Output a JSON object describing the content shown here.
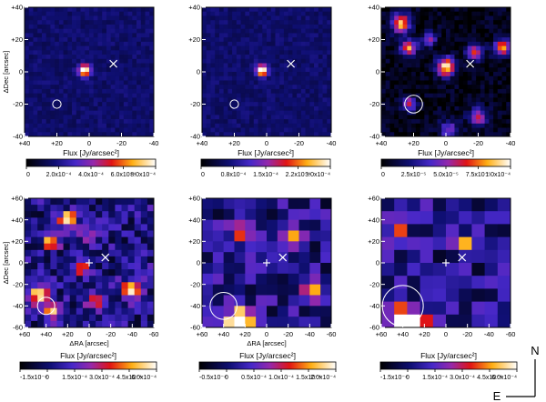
{
  "figure": {
    "compass": {
      "north": "N",
      "east": "E"
    }
  },
  "chart_data": [
    {
      "type": "heatmap",
      "panel": "top-left",
      "ylabel": "ΔDec [arcsec]",
      "xlabel": "",
      "xlim": [
        40,
        -40
      ],
      "ylim": [
        -40,
        40
      ],
      "xticks": [
        "+40",
        "+20",
        "0",
        "-20",
        "-40"
      ],
      "yticks": [
        "+40",
        "+20",
        "0",
        "-20",
        "-40"
      ],
      "grid_size": 30,
      "sources": [
        {
          "x": 3,
          "y": 1,
          "peak": 1.0,
          "sigma": 2.4
        }
      ],
      "circle": {
        "x": 20,
        "y": -20,
        "r": 2.6
      },
      "x_marker": {
        "x": -15,
        "y": 5
      },
      "plus_marker": null,
      "colorbar": {
        "label": "Flux [Jy/arcsec²]",
        "ticks": [
          "0",
          "2.0x10⁻⁴",
          "4.0x10⁻⁴",
          "6.0x10⁻⁴",
          "8.0x10⁻⁴"
        ],
        "range": [
          0,
          0.0008
        ]
      }
    },
    {
      "type": "heatmap",
      "panel": "top-middle",
      "ylabel": "",
      "xlabel": "",
      "xlim": [
        40,
        -40
      ],
      "ylim": [
        -40,
        40
      ],
      "xticks": [
        "+40",
        "+20",
        "0",
        "-20",
        "-40"
      ],
      "yticks": [
        "+40",
        "+20",
        "0",
        "-20",
        "-40"
      ],
      "grid_size": 30,
      "sources": [
        {
          "x": 3,
          "y": 1,
          "peak": 0.95,
          "sigma": 2.4
        }
      ],
      "circle": {
        "x": 20,
        "y": -20,
        "r": 2.6
      },
      "x_marker": {
        "x": -15,
        "y": 5
      },
      "plus_marker": null,
      "colorbar": {
        "label": "Flux [Jy/arcsec²]",
        "ticks": [
          "0",
          "0.8x10⁻⁴",
          "1.5x10⁻⁴",
          "2.2x10⁻⁴",
          "3.0x10⁻⁴"
        ],
        "range": [
          0,
          0.0003
        ]
      }
    },
    {
      "type": "heatmap",
      "panel": "top-right",
      "ylabel": "",
      "xlabel": "",
      "xlim": [
        40,
        -40
      ],
      "ylim": [
        -40,
        40
      ],
      "xticks": [
        "+40",
        "+20",
        "0",
        "-20",
        "-40"
      ],
      "yticks": [
        "+40",
        "+20",
        "0",
        "-20",
        "-40"
      ],
      "grid_size": 30,
      "sources": [
        {
          "x": 28,
          "y": 30,
          "peak": 0.85,
          "sigma": 4.0
        },
        {
          "x": 23,
          "y": 15,
          "peak": 0.75,
          "sigma": 3.5
        },
        {
          "x": 0,
          "y": 3,
          "peak": 0.9,
          "sigma": 4.0
        },
        {
          "x": -35,
          "y": 15,
          "peak": 0.8,
          "sigma": 3.5
        },
        {
          "x": -18,
          "y": 12,
          "peak": 0.6,
          "sigma": 3.5
        },
        {
          "x": 23,
          "y": -20,
          "peak": 0.6,
          "sigma": 3.0
        },
        {
          "x": -20,
          "y": -28,
          "peak": 0.55,
          "sigma": 4.0
        },
        {
          "x": -2,
          "y": -36,
          "peak": 0.45,
          "sigma": 4.0
        },
        {
          "x": 10,
          "y": 20,
          "peak": 0.45,
          "sigma": 3.0
        }
      ],
      "circle": {
        "x": 20,
        "y": -20,
        "r": 5.5
      },
      "x_marker": {
        "x": -15,
        "y": 5
      },
      "plus_marker": null,
      "colorbar": {
        "label": "Flux [Jy/arcsec²]",
        "ticks": [
          "0",
          "2.5x10⁻⁵",
          "5.0x10⁻⁵",
          "7.5x10⁻⁵",
          "1.0x10⁻⁴"
        ],
        "range": [
          0,
          0.0001
        ]
      }
    },
    {
      "type": "heatmap",
      "panel": "bottom-left",
      "ylabel": "ΔDec [arcsec]",
      "xlabel": "ΔRA [arcsec]",
      "xlim": [
        60,
        -60
      ],
      "ylim": [
        -60,
        60
      ],
      "xticks": [
        "+60",
        "+40",
        "+20",
        "0",
        "-20",
        "-40",
        "-60"
      ],
      "yticks": [
        "+60",
        "+40",
        "+20",
        "0",
        "-20",
        "-40",
        "-60"
      ],
      "grid_size": 20,
      "sources": [
        {
          "x": 20,
          "y": 40,
          "peak": 0.85,
          "sigma": 5.0
        },
        {
          "x": 35,
          "y": 20,
          "peak": 0.6,
          "sigma": 5.0
        },
        {
          "x": 45,
          "y": -30,
          "peak": 0.9,
          "sigma": 6.0
        },
        {
          "x": 35,
          "y": -45,
          "peak": 0.7,
          "sigma": 5.0
        },
        {
          "x": -40,
          "y": -25,
          "peak": 0.7,
          "sigma": 6.0
        },
        {
          "x": 5,
          "y": -5,
          "peak": 0.5,
          "sigma": 5.0
        },
        {
          "x": -5,
          "y": -35,
          "peak": 0.45,
          "sigma": 5.0
        },
        {
          "x": 0,
          "y": 25,
          "peak": 0.4,
          "sigma": 5.0
        }
      ],
      "circle": {
        "x": 40,
        "y": -40,
        "r": 8.0
      },
      "x_marker": {
        "x": -15,
        "y": 5
      },
      "plus_marker": {
        "x": 0,
        "y": 0
      },
      "colorbar": {
        "label": "Flux [Jy/arcsec²]",
        "ticks": [
          "-1.5x10⁻⁴",
          "0",
          "1.5x10⁻⁴",
          "3.0x10⁻⁴",
          "4.5x10⁻⁴",
          "6.0x10⁻⁴"
        ],
        "range": [
          -0.00015,
          0.0006
        ]
      }
    },
    {
      "type": "heatmap",
      "panel": "bottom-middle",
      "ylabel": "",
      "xlabel": "ΔRA [arcsec]",
      "xlim": [
        60,
        -60
      ],
      "ylim": [
        -60,
        60
      ],
      "xticks": [
        "+60",
        "+40",
        "+20",
        "0",
        "-20",
        "-40",
        "-60"
      ],
      "yticks": [
        "+60",
        "+40",
        "+20",
        "0",
        "-20",
        "-40",
        "-60"
      ],
      "grid_size": 12,
      "sources": [
        {
          "x": 25,
          "y": -55,
          "peak": 1.0,
          "sigma": 9.0
        },
        {
          "x": 25,
          "y": 30,
          "peak": 0.55,
          "sigma": 7.0
        },
        {
          "x": -25,
          "y": 20,
          "peak": 0.5,
          "sigma": 7.0
        },
        {
          "x": -45,
          "y": -25,
          "peak": 0.45,
          "sigma": 7.0
        }
      ],
      "circle": {
        "x": 40,
        "y": -40,
        "r": 12.5
      },
      "x_marker": {
        "x": -15,
        "y": 5
      },
      "plus_marker": {
        "x": 0,
        "y": 0
      },
      "colorbar": {
        "label": "Flux [Jy/arcsec²]",
        "ticks": [
          "-0.5x10⁻⁴",
          "0",
          "0.5x10⁻⁴",
          "1.0x10⁻⁴",
          "1.5x10⁻⁴",
          "2.0x10⁻⁴"
        ],
        "range": [
          -5e-05,
          0.0002
        ]
      }
    },
    {
      "type": "heatmap",
      "panel": "bottom-right",
      "ylabel": "",
      "xlabel": "",
      "xlim": [
        60,
        -60
      ],
      "ylim": [
        -60,
        60
      ],
      "xticks": [
        "+60",
        "+40",
        "+20",
        "0",
        "-20",
        "-40",
        "-60"
      ],
      "yticks": [
        "+60",
        "+40",
        "+20",
        "0",
        "-20",
        "-40",
        "-60"
      ],
      "grid_size": 10,
      "sources": [
        {
          "x": 35,
          "y": -55,
          "peak": 1.0,
          "sigma": 10.0
        },
        {
          "x": -15,
          "y": 15,
          "peak": 0.6,
          "sigma": 6.0
        },
        {
          "x": 45,
          "y": 35,
          "peak": 0.45,
          "sigma": 8.0
        }
      ],
      "circle": {
        "x": 40,
        "y": -40,
        "r": 19.0
      },
      "x_marker": {
        "x": -15,
        "y": 5
      },
      "plus_marker": {
        "x": 0,
        "y": 0
      },
      "colorbar": {
        "label": "Flux [Jy/arcsec²]",
        "ticks": [
          "-1.5x10⁻⁴",
          "0",
          "1.5x10⁻⁴",
          "3.0x10⁻⁴",
          "4.5x10⁻⁴",
          "6.0x10⁻⁴"
        ],
        "range": [
          -0.00015,
          0.0006
        ]
      }
    }
  ]
}
